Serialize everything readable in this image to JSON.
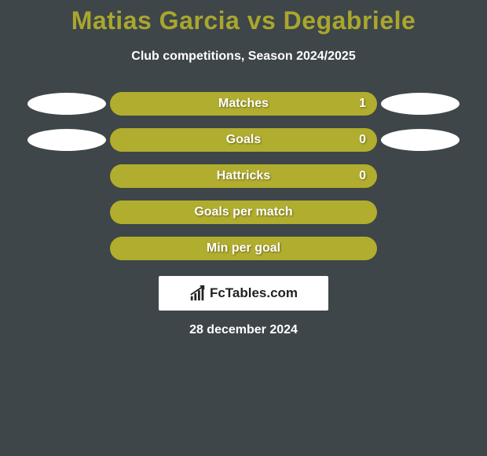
{
  "background_color": "#3e4649",
  "title": {
    "text": "Matias Garcia vs Degabriele",
    "color": "#a9a62e",
    "fontsize": 32
  },
  "subtitle": {
    "text": "Club competitions, Season 2024/2025",
    "color": "#ffffff",
    "fontsize": 16
  },
  "bar_track_color": "#8a8927",
  "bar_fill_color": "#b1ad2e",
  "bar_text_color": "#ffffff",
  "orb_color": "#ffffff",
  "rows": [
    {
      "label": "Matches",
      "value": "1",
      "fill_pct": 100,
      "orb_left": true,
      "orb_right": true
    },
    {
      "label": "Goals",
      "value": "0",
      "fill_pct": 100,
      "orb_left": true,
      "orb_right": true
    },
    {
      "label": "Hattricks",
      "value": "0",
      "fill_pct": 100,
      "orb_left": false,
      "orb_right": false
    },
    {
      "label": "Goals per match",
      "value": "",
      "fill_pct": 100,
      "orb_left": false,
      "orb_right": false
    },
    {
      "label": "Min per goal",
      "value": "",
      "fill_pct": 100,
      "orb_left": false,
      "orb_right": false
    }
  ],
  "logo": {
    "bg_color": "#ffffff",
    "icon_color": "#222222",
    "text": "FcTables.com",
    "text_color": "#222222"
  },
  "date": {
    "text": "28 december 2024",
    "color": "#ffffff"
  }
}
